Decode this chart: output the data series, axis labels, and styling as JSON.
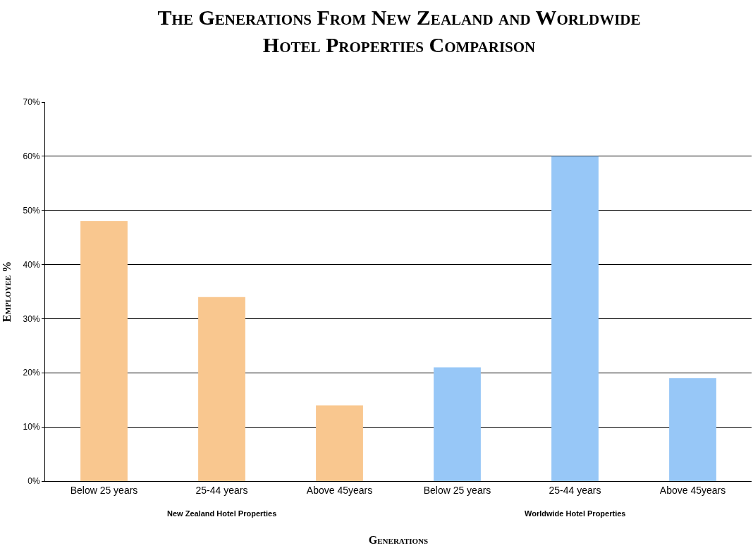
{
  "chart_data": {
    "type": "bar",
    "title": "The Generations From New Zealand and Worldwide\nHotel Properties Comparison",
    "xlabel": "Generations",
    "ylabel": "Employee %",
    "categories": [
      "Below 25 years",
      "25-44 years",
      "Above 45years",
      "Below 25 years",
      "25-44 years",
      "Above 45years"
    ],
    "values": [
      48,
      34,
      14,
      21,
      60,
      19
    ],
    "colors": [
      "#f9c78f",
      "#f9c78f",
      "#f9c78f",
      "#97c7f7",
      "#97c7f7",
      "#97c7f7"
    ],
    "annotations": [
      "New Zealand Hotel Properties",
      "Worldwide Hotel Properties"
    ],
    "ylim": [
      0,
      70
    ],
    "yticks": [
      {
        "value": 0,
        "label": "0%"
      },
      {
        "value": 10,
        "label": "10%"
      },
      {
        "value": 20,
        "label": "20%"
      },
      {
        "value": 30,
        "label": "30%"
      },
      {
        "value": 40,
        "label": "40%"
      },
      {
        "value": 50,
        "label": "50%"
      },
      {
        "value": 60,
        "label": "60%"
      },
      {
        "value": 70,
        "label": "70%"
      }
    ],
    "grid": "y"
  }
}
